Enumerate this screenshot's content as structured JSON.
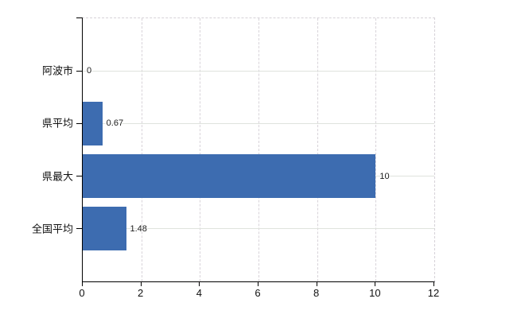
{
  "chart_data": {
    "type": "bar",
    "orientation": "horizontal",
    "title": "",
    "categories": [
      "阿波市",
      "県平均",
      "県最大",
      "全国平均"
    ],
    "values": [
      0,
      0.67,
      10,
      1.48
    ],
    "value_labels": [
      "0",
      "0.67",
      "10",
      "1.48"
    ],
    "xlabel": "",
    "ylabel": "",
    "xlim": [
      0,
      12
    ],
    "x_ticks": [
      0,
      2,
      4,
      6,
      8,
      10,
      12
    ],
    "x_tick_labels": [
      "0",
      "2",
      "4",
      "6",
      "8",
      "10",
      "12"
    ],
    "grid": true,
    "legend": false
  },
  "colors": {
    "bar": "#3d6cb0",
    "axis": "#000000",
    "grid_vertical": "#d8d3d9",
    "grid_horizontal": "#dfe3dd",
    "background": "#ffffff",
    "text": "#111111"
  }
}
